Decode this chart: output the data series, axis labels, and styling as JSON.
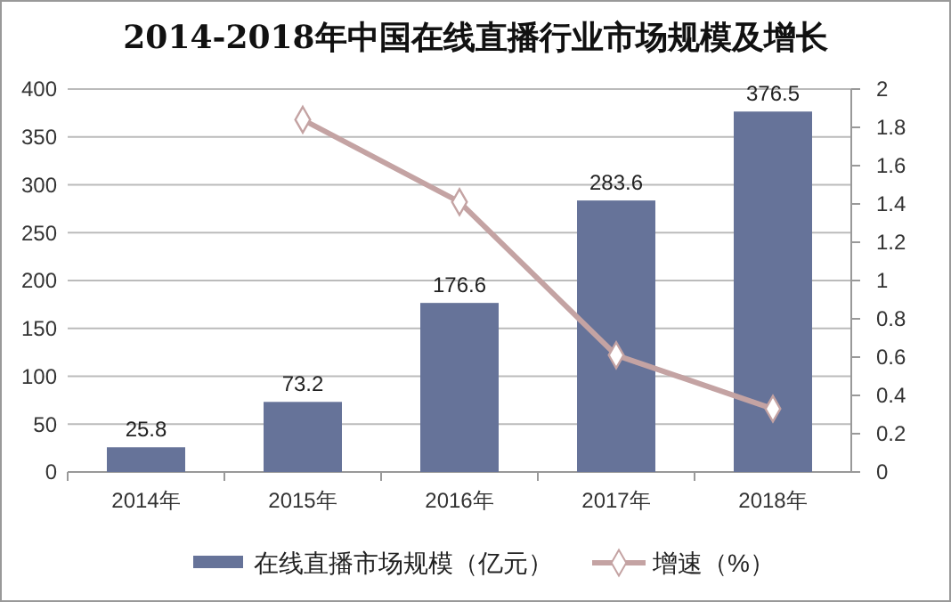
{
  "chart_data": {
    "type": "bar",
    "title": "2014-2018年中国在线直播行业市场规模及增长",
    "categories": [
      "2014年",
      "2015年",
      "2016年",
      "2017年",
      "2018年"
    ],
    "series": [
      {
        "name": "在线直播市场规模（亿元）",
        "color": "#667399",
        "values": [
          25.8,
          73.2,
          176.6,
          283.6,
          376.5
        ],
        "value_labels": [
          "25.8",
          "73.2",
          "176.6",
          "283.6",
          "376.5"
        ]
      },
      {
        "name": "增速（%）",
        "type": "line",
        "axis": "y2",
        "color": "#c4a3a3",
        "marker": "diamond",
        "values": [
          null,
          1.84,
          1.41,
          0.61,
          0.33
        ]
      }
    ],
    "ylim": [
      0,
      400
    ],
    "yticks": [
      0,
      50,
      100,
      150,
      200,
      250,
      300,
      350,
      400
    ],
    "y2lim": [
      0,
      2
    ],
    "y2ticks": [
      0,
      0.2,
      0.4,
      0.6,
      0.8,
      1,
      1.2,
      1.4,
      1.6,
      1.8,
      2
    ],
    "grid": "y",
    "legend": "bottom"
  }
}
